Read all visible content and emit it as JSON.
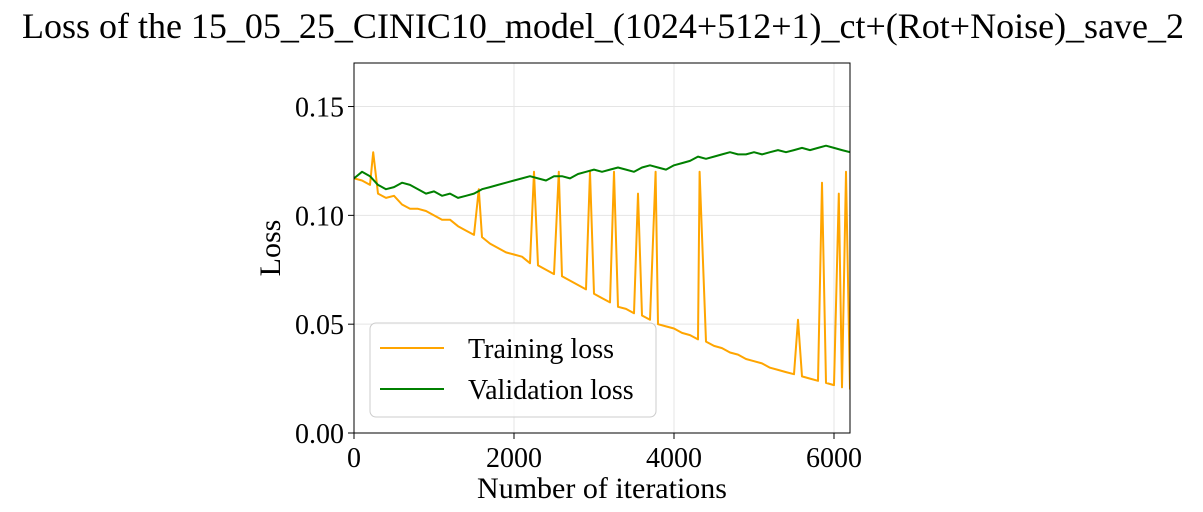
{
  "chart_data": {
    "type": "line",
    "title": "Loss of the 15_05_25_CINIC10_model_(1024+512+1)_ct+(Rot+Noise)_save_2",
    "xlabel": "Number of iterations",
    "ylabel": "Loss",
    "xlim": [
      0,
      6200
    ],
    "ylim": [
      0,
      0.17
    ],
    "xticks": [
      0,
      2000,
      4000,
      6000
    ],
    "xtick_labels": [
      "0",
      "2000",
      "4000",
      "6000"
    ],
    "yticks": [
      0,
      0.05,
      0.1,
      0.15
    ],
    "ytick_labels": [
      "0.00",
      "0.05",
      "0.10",
      "0.15"
    ],
    "grid": true,
    "legend_position": "lower-left",
    "series": [
      {
        "name": "Training loss",
        "color": "#FFA500",
        "x": [
          0,
          100,
          200,
          240,
          300,
          400,
          500,
          600,
          700,
          800,
          900,
          1000,
          1100,
          1200,
          1300,
          1400,
          1500,
          1560,
          1600,
          1700,
          1800,
          1900,
          2000,
          2100,
          2200,
          2250,
          2300,
          2400,
          2500,
          2560,
          2600,
          2700,
          2800,
          2900,
          2950,
          3000,
          3100,
          3200,
          3250,
          3300,
          3400,
          3500,
          3550,
          3600,
          3700,
          3770,
          3800,
          3900,
          4000,
          4100,
          4200,
          4300,
          4320,
          4400,
          4500,
          4600,
          4700,
          4800,
          4900,
          5000,
          5100,
          5200,
          5300,
          5400,
          5500,
          5550,
          5600,
          5700,
          5800,
          5850,
          5900,
          6000,
          6060,
          6100,
          6150,
          6200
        ],
        "y": [
          0.117,
          0.116,
          0.114,
          0.129,
          0.11,
          0.108,
          0.109,
          0.105,
          0.103,
          0.103,
          0.102,
          0.1,
          0.098,
          0.098,
          0.095,
          0.093,
          0.091,
          0.112,
          0.09,
          0.087,
          0.085,
          0.083,
          0.082,
          0.081,
          0.078,
          0.12,
          0.077,
          0.075,
          0.073,
          0.12,
          0.072,
          0.07,
          0.068,
          0.066,
          0.12,
          0.064,
          0.062,
          0.06,
          0.12,
          0.058,
          0.057,
          0.055,
          0.11,
          0.054,
          0.052,
          0.12,
          0.05,
          0.049,
          0.048,
          0.046,
          0.045,
          0.043,
          0.12,
          0.042,
          0.04,
          0.039,
          0.037,
          0.036,
          0.034,
          0.033,
          0.032,
          0.03,
          0.029,
          0.028,
          0.027,
          0.052,
          0.026,
          0.025,
          0.024,
          0.115,
          0.023,
          0.022,
          0.11,
          0.021,
          0.12,
          0.02
        ]
      },
      {
        "name": "Validation loss",
        "color": "#008000",
        "x": [
          0,
          100,
          200,
          300,
          400,
          500,
          600,
          700,
          800,
          900,
          1000,
          1100,
          1200,
          1300,
          1400,
          1500,
          1600,
          1700,
          1800,
          1900,
          2000,
          2100,
          2200,
          2300,
          2400,
          2500,
          2600,
          2700,
          2800,
          2900,
          3000,
          3100,
          3200,
          3300,
          3400,
          3500,
          3600,
          3700,
          3800,
          3900,
          4000,
          4100,
          4200,
          4300,
          4400,
          4500,
          4600,
          4700,
          4800,
          4900,
          5000,
          5100,
          5200,
          5300,
          5400,
          5500,
          5600,
          5700,
          5800,
          5900,
          6000,
          6100,
          6200
        ],
        "y": [
          0.117,
          0.12,
          0.118,
          0.114,
          0.112,
          0.113,
          0.115,
          0.114,
          0.112,
          0.11,
          0.111,
          0.109,
          0.11,
          0.108,
          0.109,
          0.11,
          0.112,
          0.113,
          0.114,
          0.115,
          0.116,
          0.117,
          0.118,
          0.117,
          0.116,
          0.118,
          0.118,
          0.117,
          0.119,
          0.12,
          0.121,
          0.12,
          0.121,
          0.122,
          0.121,
          0.12,
          0.122,
          0.123,
          0.122,
          0.121,
          0.123,
          0.124,
          0.125,
          0.127,
          0.126,
          0.127,
          0.128,
          0.129,
          0.128,
          0.128,
          0.129,
          0.128,
          0.129,
          0.13,
          0.129,
          0.13,
          0.131,
          0.13,
          0.131,
          0.132,
          0.131,
          0.13,
          0.129
        ]
      }
    ]
  }
}
